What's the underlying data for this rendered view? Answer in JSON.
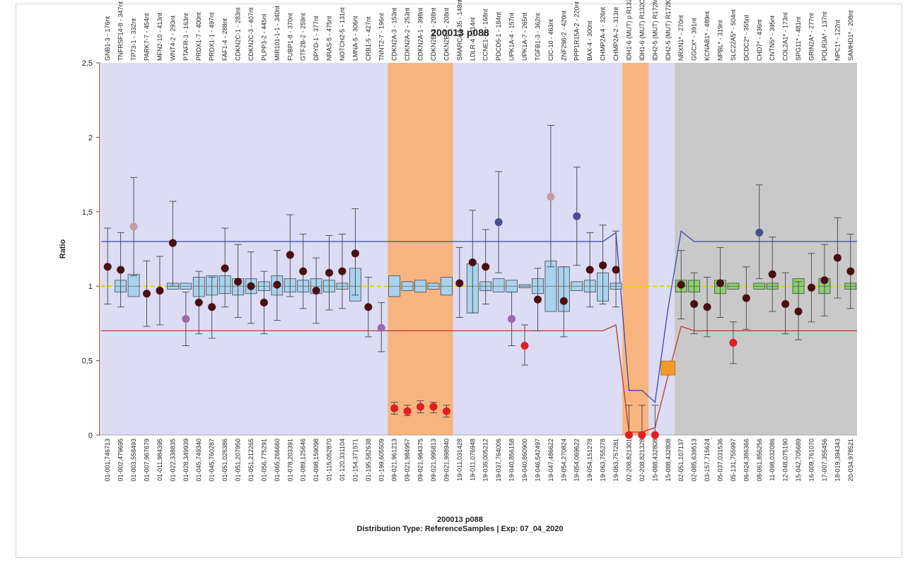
{
  "chart_data": {
    "type": "scatter",
    "title": "200013 p088",
    "footer_title": "200013 p088",
    "footer_subtitle": "Distribution Type: ReferenceSamples | Exp: 07_04_2020",
    "ylabel": "Ratio",
    "ylim": [
      0,
      2.5
    ],
    "yticks": [
      {
        "v": 0,
        "label": "0"
      },
      {
        "v": 0.5,
        "label": "0,5"
      },
      {
        "v": 1,
        "label": "1"
      },
      {
        "v": 1.5,
        "label": "1,5"
      },
      {
        "v": 2,
        "label": "2"
      },
      {
        "v": 2.5,
        "label": "2,5"
      }
    ],
    "grid": false,
    "reference_line": 1,
    "categories": [
      {
        "top": "GNB1-3 - 176nt",
        "bottom": "01-001,746713",
        "v": 1.13,
        "lo": 0.88,
        "hi": 1.39,
        "c": "#4a0f14",
        "box": null
      },
      {
        "top": "TNFRSF14-8 - 347nt",
        "bottom": "01-002,479695",
        "v": 1.11,
        "lo": 0.86,
        "hi": 1.36,
        "c": "#4a0f14",
        "box": [
          0.96,
          1.04
        ]
      },
      {
        "top": "TP73-1 - 332nt",
        "bottom": "01-003,558493",
        "v": 1.4,
        "lo": 1.07,
        "hi": 1.73,
        "c": "#c79aa6",
        "box": [
          0.93,
          1.08
        ]
      },
      {
        "top": "PARK7-7 - 454nt",
        "bottom": "01-007,967679",
        "v": 0.95,
        "lo": 0.73,
        "hi": 1.17,
        "c": "#4a0f14",
        "box": null
      },
      {
        "top": "MFN2-10 - 413nt",
        "bottom": "01-011,984395",
        "v": 0.97,
        "lo": 0.74,
        "hi": 1.2,
        "c": "#4a0f14",
        "box": null
      },
      {
        "top": "WNT4-2 - 293nt",
        "bottom": "01-022,338835",
        "v": 1.29,
        "lo": 1.0,
        "hi": 1.57,
        "c": "#4a0f14",
        "box": [
          0.98,
          1.02
        ]
      },
      {
        "top": "PTAFR-3 - 163nt",
        "bottom": "01-028,349939",
        "v": 0.78,
        "lo": 0.6,
        "hi": 0.96,
        "c": "#9a6aa9",
        "box": [
          0.98,
          1.02
        ]
      },
      {
        "top": "PRDX1-7 - 400nt",
        "bottom": "01-045,749340",
        "v": 0.89,
        "lo": 0.68,
        "hi": 1.1,
        "c": "#4a0f14",
        "box": [
          0.93,
          1.06
        ]
      },
      {
        "top": "PRDX1-1 - 497nt",
        "bottom": "01-045,760287",
        "v": 0.86,
        "lo": 0.65,
        "hi": 1.06,
        "c": "#4a0f14",
        "box": [
          0.94,
          1.07
        ]
      },
      {
        "top": "FAF1-4 - 288nt",
        "bottom": "01-051,026386",
        "v": 1.12,
        "lo": 0.86,
        "hi": 1.39,
        "c": "#4a0f14",
        "box": [
          0.95,
          1.07
        ]
      },
      {
        "top": "CDKN2C-1 - 283nt",
        "bottom": "01-051,207950",
        "v": 1.03,
        "lo": 0.79,
        "hi": 1.28,
        "c": "#4a0f14",
        "box": [
          0.94,
          1.05
        ]
      },
      {
        "top": "CDKN2C-3 - 407nt",
        "bottom": "01-051,212265",
        "v": 1.0,
        "lo": 0.75,
        "hi": 1.23,
        "c": "#4a0f14",
        "box": [
          0.95,
          1.05
        ]
      },
      {
        "top": "PLPP3-2 - 445nt",
        "bottom": "01-056,775291",
        "v": 0.89,
        "lo": 0.68,
        "hi": 1.1,
        "c": "#4a0f14",
        "box": [
          0.97,
          1.03
        ]
      },
      {
        "top": "MIR101-1-1 - 340nt",
        "bottom": "01-065,266660",
        "v": 1.01,
        "lo": 0.77,
        "hi": 1.24,
        "c": "#4a0f14",
        "box": [
          0.94,
          1.07
        ]
      },
      {
        "top": "FUBP1-8 - 370nt",
        "bottom": "01-078,203391",
        "v": 1.21,
        "lo": 0.93,
        "hi": 1.48,
        "c": "#4a0f14",
        "box": [
          0.96,
          1.05
        ]
      },
      {
        "top": "GTF2B-2 - 259nt",
        "bottom": "01-089,125646",
        "v": 1.1,
        "lo": 0.85,
        "hi": 1.35,
        "c": "#4a0f14",
        "box": [
          0.96,
          1.04
        ]
      },
      {
        "top": "DPYD-1 - 377nt",
        "bottom": "01-098,159098",
        "v": 0.97,
        "lo": 0.75,
        "hi": 1.19,
        "c": "#4a0f14",
        "box": [
          0.95,
          1.05
        ]
      },
      {
        "top": "NRAS-5 - 475nt",
        "bottom": "01-115,052870",
        "v": 1.09,
        "lo": 0.84,
        "hi": 1.34,
        "c": "#4a0f14",
        "box": [
          0.96,
          1.04
        ]
      },
      {
        "top": "NOTCH2-5 - 131nt",
        "bottom": "01-120,331104",
        "v": 1.1,
        "lo": 0.85,
        "hi": 1.35,
        "c": "#4a0f14",
        "box": [
          0.98,
          1.02
        ]
      },
      {
        "top": "LMNA-5 - 306nt",
        "bottom": "01-154,371571",
        "v": 1.22,
        "lo": 0.94,
        "hi": 1.52,
        "c": "#4a0f14",
        "box": [
          0.9,
          1.12
        ]
      },
      {
        "top": "CRB1-5 - 427nt",
        "bottom": "01-195,582638",
        "v": 0.86,
        "lo": 0.66,
        "hi": 1.06,
        "c": "#4a0f14",
        "box": null
      },
      {
        "top": "TNNT2-7 - 196nt",
        "bottom": "01-199,605509",
        "v": 0.72,
        "lo": 0.56,
        "hi": 0.89,
        "c": "#9a6aa9",
        "box": null
      },
      {
        "top": "CDKN2A-3 - 153nt",
        "bottom": "09-021,961213",
        "v": 0.18,
        "lo": 0.14,
        "hi": 0.22,
        "c": "#e02020",
        "box": [
          0.93,
          1.07
        ]
      },
      {
        "top": "CDKN2A-2 - 253nt",
        "bottom": "09-021,984957",
        "v": 0.16,
        "lo": 0.13,
        "hi": 0.2,
        "c": "#e02020",
        "box": [
          0.97,
          1.03
        ]
      },
      {
        "top": "CDKN2A-1 - 398nt",
        "bottom": "09-021,984375",
        "v": 0.19,
        "lo": 0.15,
        "hi": 0.23,
        "c": "#e02020",
        "box": [
          0.96,
          1.04
        ]
      },
      {
        "top": "CDKN2B-2 - 208nt",
        "bottom": "09-021,995813",
        "v": 0.19,
        "lo": 0.15,
        "hi": 0.22,
        "c": "#e02020",
        "box": [
          0.98,
          1.02
        ]
      },
      {
        "top": "CDKN2B-1 - 208nt",
        "bottom": "09-021,998940",
        "v": 0.16,
        "lo": 0.12,
        "hi": 0.2,
        "c": "#e02020",
        "box": [
          0.94,
          1.06
        ]
      },
      {
        "top": "SMARCA4-35 - 148nt",
        "bottom": "19-011,031428",
        "v": 1.02,
        "lo": 0.79,
        "hi": 1.26,
        "c": "#4a0f14",
        "box": null
      },
      {
        "top": "LDLR-4 - 214nt",
        "bottom": "19-011,076948",
        "v": 1.16,
        "lo": 0.82,
        "hi": 1.51,
        "c": "#4a0f14",
        "box": [
          0.82,
          1.15
        ]
      },
      {
        "top": "CCNE1-11 - 168nt",
        "bottom": "19-035,005212",
        "v": 1.13,
        "lo": 0.88,
        "hi": 1.38,
        "c": "#4a0f14",
        "box": [
          0.97,
          1.03
        ]
      },
      {
        "top": "PDCD5-1 - 184nt",
        "bottom": "19-037,764006",
        "v": 1.43,
        "lo": 1.09,
        "hi": 1.77,
        "c": "#4b4d8f",
        "box": [
          0.96,
          1.05
        ]
      },
      {
        "top": "UPK1A-4 - 157nt",
        "bottom": "19-040,856158",
        "v": 0.78,
        "lo": 0.6,
        "hi": 0.96,
        "c": "#9a6aa9",
        "box": [
          0.96,
          1.04
        ]
      },
      {
        "top": "UPK1A-7 - 265nt",
        "bottom": "19-040,860900",
        "v": 0.6,
        "lo": 0.47,
        "hi": 0.74,
        "c": "#e02020",
        "box": [
          0.99,
          1.01
        ]
      },
      {
        "top": "TGFB1-3 - 362nt",
        "bottom": "19-046,542497",
        "v": 0.91,
        "lo": 0.7,
        "hi": 1.12,
        "c": "#4a0f14",
        "box": [
          0.95,
          1.05
        ]
      },
      {
        "top": "CIC-10 - 463nt",
        "bottom": "19-047,486622",
        "v": 1.6,
        "lo": 1.13,
        "hi": 2.08,
        "c": "#c79aa6",
        "box": [
          0.83,
          1.17
        ]
      },
      {
        "top": "ZNF296-2 - 420nt",
        "bottom": "19-054,270824",
        "v": 0.9,
        "lo": 0.66,
        "hi": 1.13,
        "c": "#4a0f14",
        "box": [
          0.83,
          1.13
        ]
      },
      {
        "top": "PPP1R15A-2 - 220nt",
        "bottom": "19-054,069622",
        "v": 1.47,
        "lo": 1.14,
        "hi": 1.8,
        "c": "#4b4d8f",
        "box": [
          0.97,
          1.03
        ]
      },
      {
        "top": "BAX-4 - 300nt",
        "bottom": "19-054,151278",
        "v": 1.11,
        "lo": 0.86,
        "hi": 1.36,
        "c": "#4a0f14",
        "box": [
          0.96,
          1.04
        ]
      },
      {
        "top": "CHMP2A-4 - 326nt",
        "bottom": "19-063,755278",
        "v": 1.14,
        "lo": 0.88,
        "hi": 1.41,
        "c": "#4a0f14",
        "box": [
          0.9,
          1.09
        ]
      },
      {
        "top": "CHMP2A-2 - 313nt",
        "bottom": "19-063,757281",
        "v": 1.11,
        "lo": 0.86,
        "hi": 1.37,
        "c": "#4a0f14",
        "box": [
          0.98,
          1.02
        ]
      },
      {
        "top": "IDH1-6 (MUT) p R132",
        "bottom": "02-208,821301",
        "v": 0.0,
        "lo": 0.0,
        "hi": 0.2,
        "c": "#e02020",
        "box": null
      },
      {
        "top": "IDH1-6 (MUT) R132C",
        "bottom": "02-208,821328",
        "v": 0.0,
        "lo": 0.0,
        "hi": 0.2,
        "c": "#e02020",
        "box": null
      },
      {
        "top": "IDH2-5 (MUT) R172M",
        "bottom": "15-088,432808",
        "v": 0.0,
        "lo": 0.0,
        "hi": 0.2,
        "c": "#e02020",
        "box": null
      },
      {
        "top": "IDH2-5 (MUT) R172K",
        "bottom": "15-088,432808",
        "v": 0.45,
        "lo": null,
        "hi": null,
        "c": "#f29a2e",
        "box": null,
        "marker": "square"
      },
      {
        "top": "NRXN1* - 270nt",
        "bottom": "02-051,107137",
        "v": 1.01,
        "lo": 0.78,
        "hi": 1.24,
        "c": "#4a0f14",
        "box": [
          0.96,
          1.04
        ],
        "ref": true
      },
      {
        "top": "GGCX* - 391nt",
        "bottom": "02-085,639513",
        "v": 0.88,
        "lo": 0.68,
        "hi": 1.09,
        "c": "#4a0f14",
        "box": [
          0.96,
          1.04
        ],
        "ref": true
      },
      {
        "top": "KCNAB1* - 489nt",
        "bottom": "03-157,715624",
        "v": 0.86,
        "lo": 0.66,
        "hi": 1.06,
        "c": "#4a0f14",
        "box": null,
        "ref": true
      },
      {
        "top": "NPBL* - 319nt",
        "bottom": "05-037,031536",
        "v": 1.02,
        "lo": 0.79,
        "hi": 1.26,
        "c": "#4a0f14",
        "box": [
          0.95,
          1.04
        ],
        "ref": true
      },
      {
        "top": "SLC22A5* - 504nt",
        "bottom": "05-131,755997",
        "v": 0.62,
        "lo": 0.48,
        "hi": 0.76,
        "c": "#e02020",
        "box": [
          0.98,
          1.02
        ],
        "ref": true
      },
      {
        "top": "DCDC2* - 355nt",
        "bottom": "06-024,386366",
        "v": 0.92,
        "lo": 0.71,
        "hi": 1.13,
        "c": "#4a0f14",
        "box": null,
        "ref": true
      },
      {
        "top": "CHD7* - 436nt",
        "bottom": "08-061,856256",
        "v": 1.36,
        "lo": 1.05,
        "hi": 1.68,
        "c": "#4b4d8f",
        "box": [
          0.98,
          1.02
        ],
        "ref": true
      },
      {
        "top": "CNTN5* - 395nt",
        "bottom": "11-098,032086",
        "v": 1.08,
        "lo": 0.83,
        "hi": 1.33,
        "c": "#4a0f14",
        "box": [
          0.98,
          1.02
        ],
        "ref": true
      },
      {
        "top": "COL2A1* - 173nt",
        "bottom": "12-048,075190",
        "v": 0.88,
        "lo": 0.68,
        "hi": 1.09,
        "c": "#4a0f14",
        "box": null,
        "ref": true
      },
      {
        "top": "SPG11* - 481nt",
        "bottom": "15-042,705689",
        "v": 0.83,
        "lo": 0.64,
        "hi": 1.03,
        "c": "#4a0f14",
        "box": [
          0.95,
          1.05
        ],
        "ref": true
      },
      {
        "top": "GRIN2A* - 277nt",
        "bottom": "16-009,761070",
        "v": 0.99,
        "lo": 0.76,
        "hi": 1.22,
        "c": "#4a0f14",
        "box": null,
        "ref": true
      },
      {
        "top": "POLR3A* - 137nt",
        "bottom": "17-007,355456",
        "v": 1.04,
        "lo": 0.8,
        "hi": 1.28,
        "c": "#4a0f14",
        "box": [
          0.95,
          1.05
        ],
        "ref": true
      },
      {
        "top": "NPC1* - 122nt",
        "bottom": "18-019,394343",
        "v": 1.19,
        "lo": 0.92,
        "hi": 1.46,
        "c": "#4a0f14",
        "box": null,
        "ref": true
      },
      {
        "top": "SAMHD1* - 208nt",
        "bottom": "20-034,978521",
        "v": 1.1,
        "lo": 0.85,
        "hi": 1.35,
        "c": "#4a0f14",
        "box": [
          0.98,
          1.02
        ],
        "ref": true
      }
    ],
    "colors": {
      "region_default": "#dcdcf4",
      "region_deleted": "#f8b47f",
      "region_reference": "#c9c9c9",
      "upper_threshold": "#3a4aa8",
      "lower_threshold": "#c0392b",
      "reference_line": "#d8d800",
      "box_fill": "#a9d3ec",
      "box_fill_ref": "#8bcf6e",
      "axis_red": "#c0392b"
    }
  }
}
